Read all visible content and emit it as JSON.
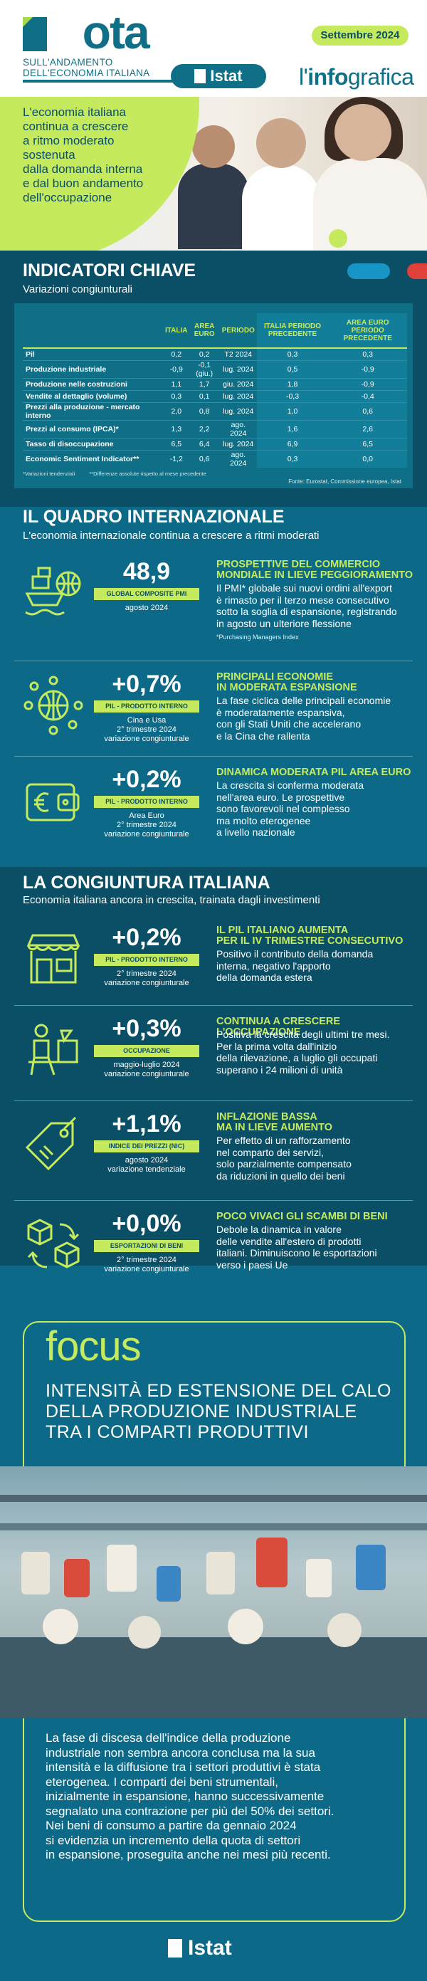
{
  "header": {
    "logo_word": "Nota",
    "logo_sub_1": "SULL'ANDAMENTO",
    "logo_sub_2": "DELL'ECONOMIA ITALIANA",
    "date": "Settembre 2024",
    "istat": "Istat",
    "infografica_pre": "l'",
    "infografica_bold": "info",
    "infografica_post": "grafica"
  },
  "hero": {
    "lines": [
      "L'economia italiana",
      "continua a crescere",
      "a ritmo moderato",
      "sostenuta",
      "dalla domanda interna",
      "e dal buon andamento",
      "dell'occupazione"
    ]
  },
  "indicatori": {
    "title": "INDICATORI CHIAVE",
    "subtitle": "Variazioni congiunturali",
    "columns": [
      "ITALIA",
      "AREA EURO",
      "PERIODO",
      "ITALIA PERIODO PRECEDENTE",
      "AREA EURO PERIODO PRECEDENTE"
    ],
    "rows": [
      {
        "label": "Pil",
        "v": [
          "0,2",
          "0,2",
          "T2 2024",
          "0,3",
          "0,3"
        ]
      },
      {
        "label": "Produzione industriale",
        "v": [
          "-0,9",
          "-0,1 (giu.)",
          "lug. 2024",
          "0,5",
          "-0,9"
        ]
      },
      {
        "label": "Produzione nelle costruzioni",
        "v": [
          "1,1",
          "1,7",
          "giu. 2024",
          "1,8",
          "-0,9"
        ]
      },
      {
        "label": "Vendite al dettaglio (volume)",
        "v": [
          "0,3",
          "0,1",
          "lug. 2024",
          "-0,3",
          "-0,4"
        ]
      },
      {
        "label": "Prezzi alla produzione - mercato interno",
        "v": [
          "2,0",
          "0,8",
          "lug. 2024",
          "1,0",
          "0,6"
        ]
      },
      {
        "label": "Prezzi al consumo (IPCA)*",
        "v": [
          "1,3",
          "2,2",
          "ago. 2024",
          "1,6",
          "2,6"
        ]
      },
      {
        "label": "Tasso di disoccupazione",
        "v": [
          "6,5",
          "6,4",
          "lug. 2024",
          "6,9",
          "6,5"
        ]
      },
      {
        "label": "Economic Sentiment Indicator**",
        "v": [
          "-1,2",
          "0,6",
          "ago. 2024",
          "0,3",
          "0,0"
        ]
      }
    ],
    "note_1": "*Variazioni tendenziali",
    "note_2": "**Differenze assolute rispetto al mese precedente",
    "source": "Fonte: Eurostat, Commissione europea, Istat"
  },
  "internazionale": {
    "title": "IL QUADRO INTERNAZIONALE",
    "subtitle": "L'economia internazionale continua a crescere a ritmi moderati",
    "items": [
      {
        "icon": "cargo-ship-globe-icon",
        "value": "48,9",
        "tag": "GLOBAL COMPOSITE PMI",
        "sub": [
          "agosto 2024"
        ],
        "title": [
          "PROSPETTIVE DEL COMMERCIO",
          "MONDIALE IN LIEVE PEGGIORAMENTO"
        ],
        "body": [
          "Il PMI* globale sui nuovi ordini all'export",
          "è rimasto per il terzo mese consecutivo",
          "sotto la soglia di espansione, registrando",
          "in agosto un ulteriore flessione"
        ],
        "foot": "*Purchasing Managers Index"
      },
      {
        "icon": "globe-people-icon",
        "value": "+0,7%",
        "tag": "PIL - PRODOTTO INTERNO LORDO",
        "sub": [
          "Cina e Usa",
          "2° trimestre 2024",
          "variazione congiunturale"
        ],
        "title": [
          "PRINCIPALI ECONOMIE",
          "IN MODERATA ESPANSIONE"
        ],
        "body": [
          "La fase ciclica delle principali economie",
          "è moderatamente espansiva,",
          "con gli Stati Uniti che accelerano",
          "e la Cina che rallenta"
        ]
      },
      {
        "icon": "euro-wallet-icon",
        "value": "+0,2%",
        "tag": "PIL - PRODOTTO INTERNO LORDO",
        "sub": [
          "Area Euro",
          "2° trimestre 2024",
          "variazione congiunturale"
        ],
        "title": [
          "DINAMICA MODERATA PIL AREA EURO"
        ],
        "body": [
          "La crescita si conferma moderata",
          "nell'area euro. Le prospettive",
          "sono favorevoli nel complesso",
          "ma molto eterogenee",
          "a livello nazionale"
        ]
      }
    ]
  },
  "italiana": {
    "title": "LA CONGIUNTURA ITALIANA",
    "subtitle": "Economia italiana ancora in crescita, trainata dagli investimenti",
    "items": [
      {
        "icon": "shop-icon",
        "value": "+0,2%",
        "tag": "PIL - PRODOTTO INTERNO LORDO",
        "sub": [
          "2° trimestre 2024",
          "variazione congiunturale"
        ],
        "title": [
          "IL PIL ITALIANO AUMENTA",
          "PER IL IV TRIMESTRE CONSECUTIVO"
        ],
        "body": [
          "Positivo il contributo della domanda",
          "interna, negativo l'apporto",
          "della domanda estera"
        ]
      },
      {
        "icon": "worker-desk-icon",
        "value": "+0,3%",
        "tag": "OCCUPAZIONE",
        "sub": [
          "maggio-luglio 2024",
          "variazione congiunturale"
        ],
        "title": [
          "CONTINUA A CRESCERE L'OCCUPAZIONE"
        ],
        "body": [
          "Positiva la crescita degli ultimi tre mesi.",
          "Per la prima volta dall'inizio",
          "della rilevazione, a luglio gli occupati",
          "superano i 24 milioni di unità"
        ]
      },
      {
        "icon": "price-tag-icon",
        "value": "+1,1%",
        "tag": "INDICE DEI PREZZI (NIC)",
        "sub": [
          "agosto 2024",
          "variazione tendenziale"
        ],
        "title": [
          "INFLAZIONE BASSA",
          "MA IN LIEVE AUMENTO"
        ],
        "body": [
          "Per effetto di un rafforzamento",
          "nel comparto dei servizi,",
          "solo parzialmente compensato",
          "da riduzioni in quello dei beni"
        ]
      },
      {
        "icon": "boxes-exchange-icon",
        "value": "+0,0%",
        "tag": "ESPORTAZIONI DI BENI",
        "sub": [
          "2° trimestre 2024",
          "variazione congiunturale"
        ],
        "title": [
          "POCO VIVACI GLI SCAMBI DI BENI"
        ],
        "body": [
          "Debole la dinamica in valore",
          "delle vendite all'estero di prodotti",
          "italiani. Diminuiscono le esportazioni",
          "verso i paesi Ue"
        ]
      }
    ]
  },
  "focus": {
    "word": "focus",
    "title": [
      "INTENSITÀ ED ESTENSIONE DEL CALO",
      "DELLA PRODUZIONE INDUSTRIALE",
      "TRA I COMPARTI PRODUTTIVI"
    ],
    "text": [
      "La fase di discesa dell'indice della produzione",
      "industriale non sembra ancora conclusa ma la sua",
      "intensità e la diffusione tra i settori produttivi è stata",
      "eterogenea. I comparti dei beni strumentali,",
      "inizialmente in espansione, hanno successivamente",
      "segnalato una contrazione per più del 50% dei settori.",
      "Nei beni di consumo a partire da gennaio 2024",
      "si evidenzia un incremento della quota di settori",
      "in espansione, proseguita anche nei mesi più recenti."
    ]
  },
  "footer": {
    "istat": "Istat"
  },
  "colors": {
    "teal": "#0c6a88",
    "dark_teal": "#0b4f66",
    "lime": "#c5ea5e",
    "white": "#ffffff"
  }
}
